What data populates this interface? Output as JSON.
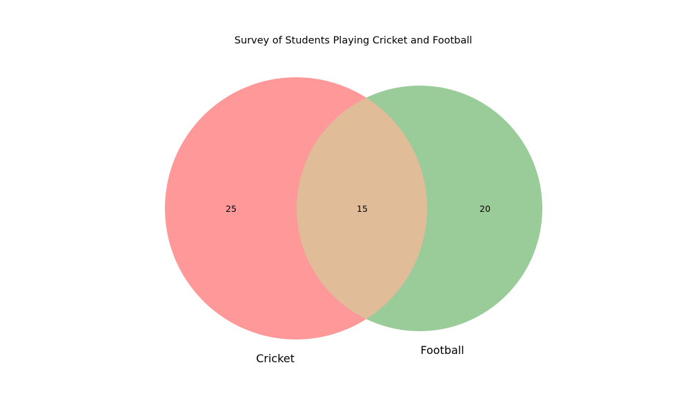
{
  "chart_data": {
    "type": "venn",
    "title": "Survey of Students Playing Cricket and Football",
    "sets": [
      {
        "name": "Cricket",
        "only_count": "25",
        "color": "#ff9999"
      },
      {
        "name": "Football",
        "only_count": "20",
        "color": "#99cc99"
      }
    ],
    "intersection": {
      "count": "15",
      "color": "#e0bc99"
    }
  }
}
